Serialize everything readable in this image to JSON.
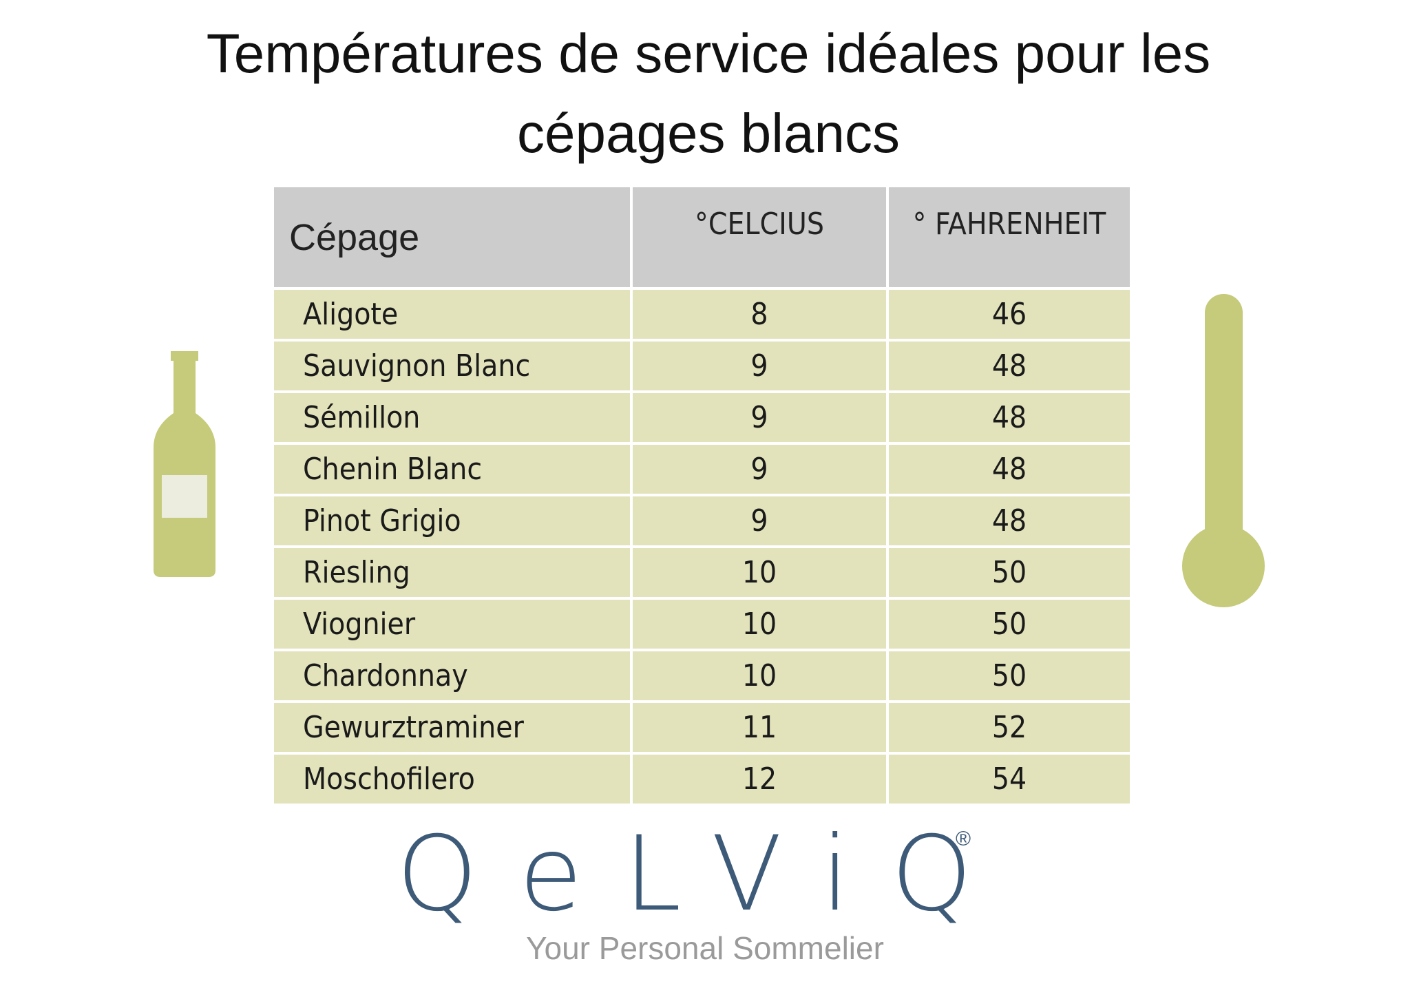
{
  "header": {
    "title": "Températures de service idéales pour les cépages blancs"
  },
  "table": {
    "columns": [
      "Cépage",
      "°CELCIUS",
      "° FAHRENHEIT"
    ],
    "rows": [
      [
        "Aligote",
        8,
        46
      ],
      [
        "Sauvignon Blanc",
        9,
        48
      ],
      [
        "Sémillon",
        9,
        48
      ],
      [
        "Chenin Blanc",
        9,
        48
      ],
      [
        "Pinot Grigio",
        9,
        48
      ],
      [
        "Riesling",
        10,
        50
      ],
      [
        "Viognier",
        10,
        50
      ],
      [
        "Chardonnay",
        10,
        50
      ],
      [
        "Gewurztraminer",
        11,
        52
      ],
      [
        "Moschofilero",
        12,
        54
      ]
    ]
  },
  "footer": {
    "logo": "QeLViQ",
    "registered": "®",
    "tagline": "Your Personal Sommelier"
  }
}
